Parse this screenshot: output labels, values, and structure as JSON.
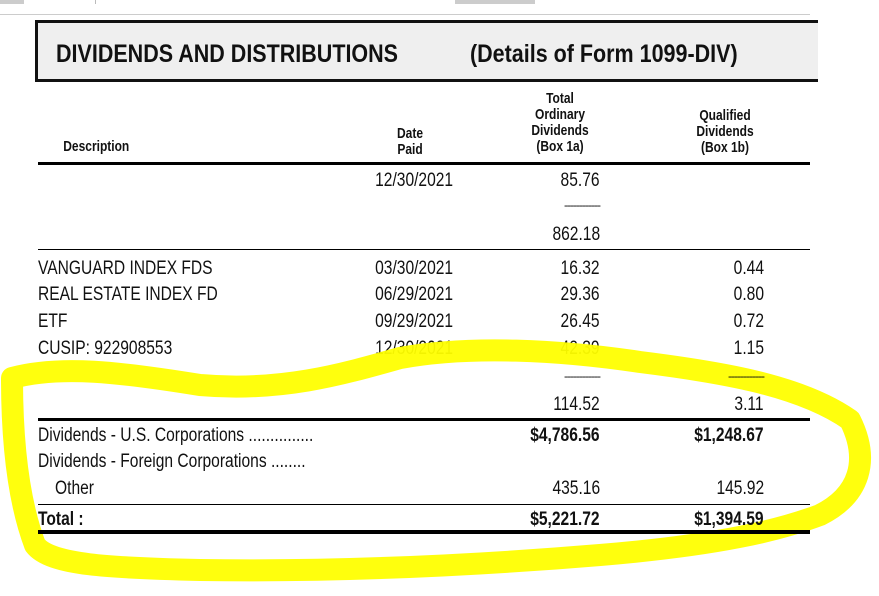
{
  "title": "DIVIDENDS AND DISTRIBUTIONS",
  "subtitle": "(Details of Form 1099-DIV)",
  "headers": {
    "description": "Description",
    "date_paid": "Date\nPaid",
    "box1a": "Total\nOrdinary\nDividends\n(Box 1a)",
    "box1b": "Qualified\nDividends\n(Box 1b)"
  },
  "first_group": {
    "date": "12/30/2021",
    "box1a": "85.76",
    "separator": "------------",
    "subtotal_1a": "862.18"
  },
  "rows": [
    {
      "description": "VANGUARD INDEX FDS",
      "date": "03/30/2021",
      "box1a": "16.32",
      "box1b": "0.44"
    },
    {
      "description": "REAL ESTATE INDEX FD",
      "date": "06/29/2021",
      "box1a": "29.36",
      "box1b": "0.80"
    },
    {
      "description": "ETF",
      "date": "09/29/2021",
      "box1a": "26.45",
      "box1b": "0.72"
    },
    {
      "description": "CUSIP:  922908553",
      "date": "12/30/2021",
      "box1a": "42.39",
      "box1b": "1.15"
    }
  ],
  "second_group": {
    "separator": "------------",
    "subtotal_1a": "114.52",
    "subtotal_1b": "3.11"
  },
  "summary": {
    "us_label": "Dividends - U.S. Corporations ...............",
    "us_1a": "$4,786.56",
    "us_1b": "$1,248.67",
    "foreign_label": "Dividends - Foreign Corporations ........",
    "other_label": "Other",
    "other_1a": "435.16",
    "other_1b": "145.92",
    "total_label": "Total :",
    "total_1a": "$5,221.72",
    "total_1b": "$1,394.59"
  },
  "highlight_color": "#ffff00"
}
